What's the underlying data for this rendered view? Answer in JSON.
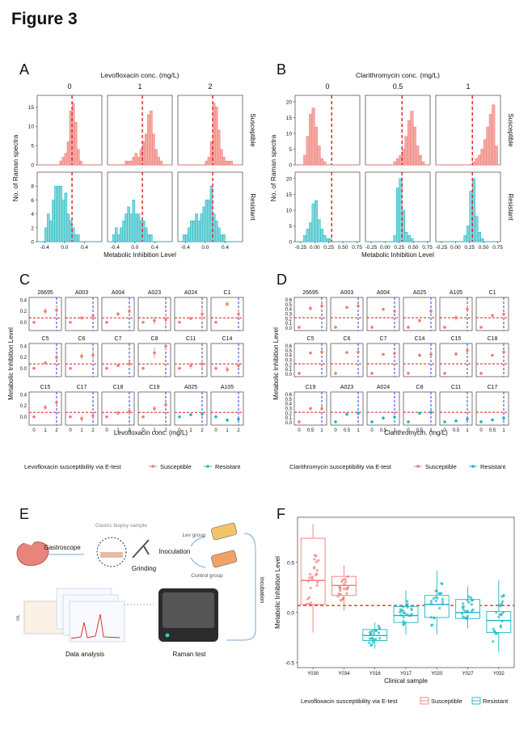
{
  "figure_title": "Figure 3",
  "colors": {
    "susceptible": "#f07b74",
    "susceptible_fill": "#f5a9a3",
    "resistant": "#19b7c3",
    "resistant_fill": "#7fd6dc",
    "dashed_red": "#e41a1c",
    "dashed_blue": "#2b3ad6"
  },
  "panel_labels": [
    "A",
    "B",
    "C",
    "D",
    "E",
    "F"
  ],
  "schematic": {
    "labels": [
      "Gastric biopsy sample",
      "Gastroscope",
      "Grinding",
      "Inoculation",
      "Lev group",
      "Control group",
      "Incubation",
      "Raman test",
      "Data analysis",
      "ML"
    ],
    "icons": [
      "stomach-icon",
      "biopsy-sample-icon",
      "grinder-icon",
      "flask-icon",
      "raman-instrument-icon",
      "spectra-icon"
    ]
  },
  "chart_data": [
    {
      "id": "A",
      "type": "bar",
      "title": "Levofloxacin conc. (mg/L)",
      "facets_cols": [
        "0",
        "1",
        "2"
      ],
      "facets_rows": [
        "Susceptible",
        "Resistant"
      ],
      "xlabel": "Metabolic Inhibition Level",
      "ylabel": "No. of Raman spectra",
      "xlim": [
        -0.55,
        0.75
      ],
      "xticks": [
        "-0.4",
        "0.0",
        "0.4"
      ],
      "ylim_rows": [
        [
          0,
          18
        ],
        [
          0,
          10
        ]
      ],
      "yticks_rows": [
        [
          "0",
          "5",
          "10",
          "15"
        ],
        [
          "0",
          "2",
          "4",
          "6",
          "8"
        ]
      ],
      "threshold": 0.15,
      "bin_width": 0.05,
      "hist": {
        "Susceptible": [
          {
            "start": -0.1,
            "counts": [
              1,
              2,
              3,
              6,
              14,
              16,
              11,
              4,
              1
            ]
          },
          {
            "start": -0.2,
            "counts": [
              1,
              1,
              1,
              2,
              3,
              2,
              4,
              6,
              8,
              13,
              14,
              8,
              4,
              2,
              1
            ]
          },
          {
            "start": 0.0,
            "counts": [
              1,
              2,
              6,
              16,
              15,
              9,
              4,
              2,
              1,
              1,
              1
            ]
          }
        ],
        "Resistant": [
          {
            "start": -0.4,
            "counts": [
              2,
              4,
              3,
              6,
              8,
              8,
              8,
              6,
              7,
              4,
              3,
              2,
              1,
              1
            ]
          },
          {
            "start": -0.45,
            "counts": [
              1,
              2,
              1,
              2,
              3,
              4,
              5,
              4,
              6,
              4,
              4,
              3,
              3,
              2,
              1,
              1
            ]
          },
          {
            "start": -0.45,
            "counts": [
              1,
              1,
              2,
              3,
              3,
              4,
              3,
              4,
              5,
              6,
              6,
              8,
              4,
              3,
              2,
              1,
              1
            ]
          }
        ]
      }
    },
    {
      "id": "B",
      "type": "bar",
      "title": "Clarithromycin conc. (mg/L)",
      "facets_cols": [
        "0",
        "0.5",
        "1"
      ],
      "facets_rows": [
        "Susceptible",
        "Resistant"
      ],
      "xlabel": "Metabolic Inhibition Level",
      "ylabel": "No. of Raman spectra",
      "xlim": [
        -0.35,
        0.8
      ],
      "xticks": [
        "-0.25",
        "0.00",
        "0.25",
        "0.50",
        "0.75"
      ],
      "ylim_rows": [
        [
          0,
          22
        ],
        [
          0,
          22
        ]
      ],
      "yticks_rows": [
        [
          "0",
          "5",
          "10",
          "15",
          "20"
        ],
        [
          "0",
          "5",
          "10",
          "15",
          "20"
        ]
      ],
      "threshold": 0.3,
      "bin_width": 0.05,
      "hist": {
        "Susceptible": [
          {
            "start": -0.2,
            "counts": [
              3,
              9,
              16,
              18,
              12,
              6,
              2,
              1
            ]
          },
          {
            "start": 0.15,
            "counts": [
              1,
              2,
              3,
              5,
              9,
              14,
              17,
              12,
              6,
              3,
              1
            ]
          },
          {
            "start": 0.3,
            "counts": [
              1,
              2,
              3,
              5,
              8,
              12,
              16,
              19,
              6
            ]
          }
        ],
        "Resistant": [
          {
            "start": -0.2,
            "counts": [
              2,
              4,
              6,
              12,
              13,
              7,
              4,
              2,
              1,
              1
            ]
          },
          {
            "start": 0.15,
            "counts": [
              2,
              17,
              20,
              10,
              3,
              2,
              1
            ]
          },
          {
            "start": 0.15,
            "counts": [
              2,
              5,
              16,
              20,
              8,
              3,
              1
            ]
          }
        ]
      }
    },
    {
      "id": "C",
      "type": "scatter",
      "ylabel": "Metabolic Inhibition Level",
      "xlabel": "Levofloxacin conc.  (mg/L)",
      "xticks": [
        "0",
        "1",
        "2"
      ],
      "ylim": [
        -0.15,
        0.45
      ],
      "yticks": [
        "0.0",
        "0.2",
        "0.4"
      ],
      "threshold": 0.08,
      "legend_title": "Levofloxacin susceptibility via E-test",
      "legend": [
        "Susceptible",
        "Resistant"
      ],
      "panels": [
        {
          "name": "26695",
          "group": "Susceptible",
          "means": [
            0.0,
            0.2,
            0.22
          ],
          "errs": [
            0.02,
            0.06,
            0.08
          ]
        },
        {
          "name": "A003",
          "group": "Susceptible",
          "means": [
            0.0,
            0.08,
            0.12
          ],
          "errs": [
            0.02,
            0.03,
            0.04
          ]
        },
        {
          "name": "A004",
          "group": "Susceptible",
          "means": [
            0.0,
            0.15,
            0.2
          ],
          "errs": [
            0.02,
            0.04,
            0.06
          ]
        },
        {
          "name": "A023",
          "group": "Susceptible",
          "means": [
            0.0,
            0.03,
            0.05
          ],
          "errs": [
            0.02,
            0.07,
            0.1
          ]
        },
        {
          "name": "A024",
          "group": "Susceptible",
          "means": [
            0.0,
            0.07,
            0.15
          ],
          "errs": [
            0.02,
            0.02,
            0.1
          ]
        },
        {
          "name": "C1",
          "group": "Susceptible",
          "means": [
            0.0,
            0.33,
            0.15
          ],
          "errs": [
            0.02,
            0.04,
            0.06
          ]
        },
        {
          "name": "C5",
          "group": "Susceptible",
          "means": [
            0.0,
            0.1,
            0.2
          ],
          "errs": [
            0.02,
            0.03,
            0.05
          ]
        },
        {
          "name": "C6",
          "group": "Susceptible",
          "means": [
            0.0,
            0.22,
            0.24
          ],
          "errs": [
            0.02,
            0.06,
            0.1
          ]
        },
        {
          "name": "C7",
          "group": "Susceptible",
          "means": [
            0.0,
            0.05,
            0.08
          ],
          "errs": [
            0.02,
            0.03,
            0.04
          ]
        },
        {
          "name": "C8",
          "group": "Susceptible",
          "means": [
            0.0,
            0.28,
            0.4
          ],
          "errs": [
            0.02,
            0.1,
            0.06
          ]
        },
        {
          "name": "C11",
          "group": "Susceptible",
          "means": [
            0.0,
            0.05,
            0.08
          ],
          "errs": [
            0.02,
            0.06,
            0.07
          ]
        },
        {
          "name": "C14",
          "group": "Susceptible",
          "means": [
            0.0,
            -0.02,
            0.05
          ],
          "errs": [
            0.02,
            0.06,
            0.04
          ]
        },
        {
          "name": "C15",
          "group": "Susceptible",
          "means": [
            0.0,
            0.17,
            0.26
          ],
          "errs": [
            0.02,
            0.05,
            0.05
          ]
        },
        {
          "name": "C17",
          "group": "Susceptible",
          "means": [
            0.0,
            -0.03,
            0.02
          ],
          "errs": [
            0.02,
            0.06,
            0.03
          ]
        },
        {
          "name": "C18",
          "group": "Susceptible",
          "means": [
            0.0,
            0.07,
            0.1
          ],
          "errs": [
            0.02,
            0.04,
            0.04
          ]
        },
        {
          "name": "C19",
          "group": "Susceptible",
          "means": [
            0.0,
            0.15,
            0.22
          ],
          "errs": [
            0.02,
            0.05,
            0.05
          ]
        },
        {
          "name": "A025",
          "group": "Resistant",
          "means": [
            0.0,
            0.04,
            0.05
          ],
          "errs": [
            0.02,
            0.02,
            0.03
          ]
        },
        {
          "name": "A105",
          "group": "Resistant",
          "means": [
            0.0,
            -0.06,
            -0.04
          ],
          "errs": [
            0.02,
            0.03,
            0.03
          ]
        }
      ]
    },
    {
      "id": "D",
      "type": "scatter",
      "ylabel": "Metabolic Inhibition Level",
      "xlabel": "Clarithromycin. (mg/L)",
      "xticks": [
        "0",
        "0.5",
        "1"
      ],
      "ylim": [
        -0.05,
        0.65
      ],
      "yticks": [
        "0.0",
        "0.1",
        "0.2",
        "0.3",
        "0.4",
        "0.5",
        "0.6"
      ],
      "threshold": 0.22,
      "legend_title": "Clarithromycin susceptibility via E-test",
      "legend": [
        "Susceptible",
        "Resistant"
      ],
      "panels": [
        {
          "name": "26695",
          "group": "Susceptible",
          "means": [
            0.02,
            0.42,
            0.47
          ],
          "errs": [
            0.01,
            0.05,
            0.05
          ]
        },
        {
          "name": "A003",
          "group": "Susceptible",
          "means": [
            0.02,
            0.44,
            0.47
          ],
          "errs": [
            0.01,
            0.02,
            0.03
          ]
        },
        {
          "name": "A004",
          "group": "Susceptible",
          "means": [
            0.02,
            0.4,
            0.36
          ],
          "errs": [
            0.01,
            0.02,
            0.03
          ]
        },
        {
          "name": "A025",
          "group": "Susceptible",
          "means": [
            0.02,
            0.16,
            0.36
          ],
          "errs": [
            0.01,
            0.04,
            0.06
          ]
        },
        {
          "name": "A105",
          "group": "Susceptible",
          "means": [
            0.02,
            0.22,
            0.4
          ],
          "errs": [
            0.01,
            0.06,
            0.06
          ]
        },
        {
          "name": "C1",
          "group": "Susceptible",
          "means": [
            0.02,
            0.27,
            0.3
          ],
          "errs": [
            0.01,
            0.02,
            0.02
          ]
        },
        {
          "name": "C5",
          "group": "Susceptible",
          "means": [
            0.02,
            0.45,
            0.47
          ],
          "errs": [
            0.01,
            0.02,
            0.03
          ]
        },
        {
          "name": "C6",
          "group": "Susceptible",
          "means": [
            0.02,
            0.46,
            0.47
          ],
          "errs": [
            0.01,
            0.02,
            0.03
          ]
        },
        {
          "name": "C7",
          "group": "Susceptible",
          "means": [
            0.02,
            0.42,
            0.44
          ],
          "errs": [
            0.01,
            0.02,
            0.03
          ]
        },
        {
          "name": "C14",
          "group": "Susceptible",
          "means": [
            0.02,
            0.4,
            0.42
          ],
          "errs": [
            0.01,
            0.04,
            0.05
          ]
        },
        {
          "name": "C15",
          "group": "Susceptible",
          "means": [
            0.02,
            0.43,
            0.5
          ],
          "errs": [
            0.01,
            0.04,
            0.04
          ]
        },
        {
          "name": "C18",
          "group": "Susceptible",
          "means": [
            0.02,
            0.4,
            0.47
          ],
          "errs": [
            0.01,
            0.03,
            0.03
          ]
        },
        {
          "name": "C19",
          "group": "Susceptible",
          "means": [
            0.02,
            0.3,
            0.3
          ],
          "errs": [
            0.01,
            0.04,
            0.05
          ]
        },
        {
          "name": "A023",
          "group": "Resistant",
          "means": [
            0.02,
            0.18,
            0.2
          ],
          "errs": [
            0.01,
            0.03,
            0.04
          ]
        },
        {
          "name": "A024",
          "group": "Resistant",
          "means": [
            0.02,
            0.1,
            0.12
          ],
          "errs": [
            0.01,
            0.03,
            0.04
          ]
        },
        {
          "name": "C8",
          "group": "Resistant",
          "means": [
            0.02,
            0.2,
            0.22
          ],
          "errs": [
            0.01,
            0.02,
            0.03
          ]
        },
        {
          "name": "C11",
          "group": "Resistant",
          "means": [
            0.02,
            0.04,
            0.08
          ],
          "errs": [
            0.01,
            0.02,
            0.03
          ]
        },
        {
          "name": "C17",
          "group": "Resistant",
          "means": [
            0.02,
            0.06,
            0.1
          ],
          "errs": [
            0.01,
            0.02,
            0.05
          ]
        }
      ]
    },
    {
      "id": "F",
      "type": "box",
      "ylabel": "Metabolic Inhibition Level",
      "xlabel": "Clinical sample",
      "ylim": [
        -0.55,
        0.95
      ],
      "yticks": [
        "-0.5",
        "0.0",
        "0.5"
      ],
      "threshold": 0.07,
      "legend_title": "Levofloxacin susceptibility via E-test",
      "legend": [
        "Susceptible",
        "Resistant"
      ],
      "categories": [
        "Y030",
        "Y034",
        "Y016",
        "Y017",
        "Y020",
        "Y027",
        "Y032"
      ],
      "groups": [
        "Susceptible",
        "Susceptible",
        "Resistant",
        "Resistant",
        "Resistant",
        "Resistant",
        "Resistant"
      ],
      "boxes": [
        {
          "q1": 0.08,
          "median": 0.32,
          "q3": 0.74,
          "low": -0.2,
          "high": 0.88
        },
        {
          "q1": 0.17,
          "median": 0.27,
          "q3": 0.36,
          "low": 0.02,
          "high": 0.47
        },
        {
          "q1": -0.28,
          "median": -0.23,
          "q3": -0.17,
          "low": -0.36,
          "high": -0.1
        },
        {
          "q1": -0.1,
          "median": -0.03,
          "q3": 0.06,
          "low": -0.22,
          "high": 0.22
        },
        {
          "q1": -0.05,
          "median": 0.08,
          "q3": 0.17,
          "low": -0.22,
          "high": 0.42
        },
        {
          "q1": -0.06,
          "median": 0.0,
          "q3": 0.13,
          "low": -0.16,
          "high": 0.26
        },
        {
          "q1": -0.2,
          "median": -0.08,
          "q3": 0.01,
          "low": -0.4,
          "high": 0.32
        }
      ]
    }
  ]
}
